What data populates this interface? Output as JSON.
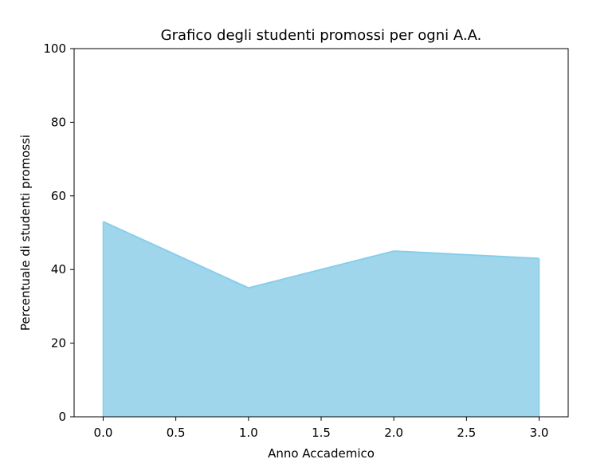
{
  "chart_data": {
    "type": "area",
    "title": "Grafico degli studenti promossi per ogni A.A.",
    "xlabel": "Anno Accademico",
    "ylabel": "Percentuale di studenti promossi",
    "x": [
      0,
      1,
      2,
      3
    ],
    "series": [
      {
        "values": [
          53,
          35,
          45,
          43
        ]
      }
    ],
    "xlim": [
      -0.2,
      3.2
    ],
    "ylim": [
      0,
      100
    ],
    "xticks": [
      "0.0",
      "0.5",
      "1.0",
      "1.5",
      "2.0",
      "2.5",
      "3.0"
    ],
    "yticks": [
      "0",
      "20",
      "40",
      "60",
      "80",
      "100"
    ],
    "grid": false,
    "colors": {
      "fill": "#a0d6ec",
      "line": "#87ceeb"
    }
  }
}
